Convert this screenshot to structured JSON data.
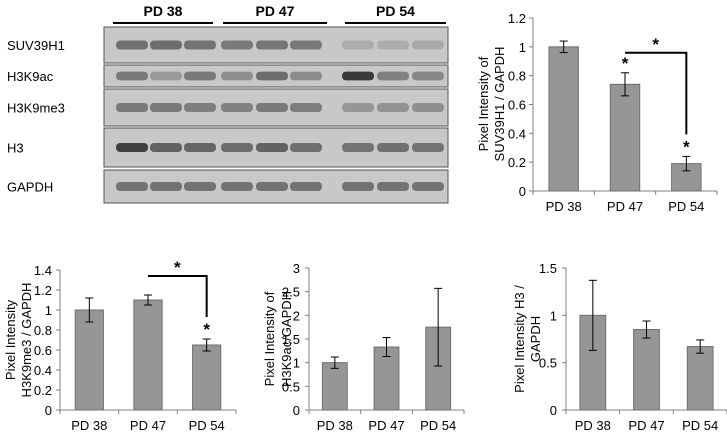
{
  "colors": {
    "bar_fill": "#969696",
    "bar_stroke": "#6d6d6d",
    "axis": "#808080",
    "blot_background": "#c8c8c8",
    "band": "#3a3a3a"
  },
  "blot": {
    "group_labels": [
      "PD 38",
      "PD 47",
      "PD 54"
    ],
    "rows": [
      {
        "label": "SUV39H1",
        "intensities": [
          0.62,
          0.64,
          0.6,
          0.55,
          0.58,
          0.56,
          0.18,
          0.2,
          0.22
        ]
      },
      {
        "label": "H3K9ac",
        "intensities": [
          0.55,
          0.32,
          0.55,
          0.4,
          0.65,
          0.42,
          1.0,
          0.5,
          0.45
        ]
      },
      {
        "label": "H3K9me3",
        "intensities": [
          0.55,
          0.55,
          0.52,
          0.5,
          0.55,
          0.52,
          0.35,
          0.38,
          0.4
        ]
      },
      {
        "label": "H3",
        "intensities": [
          0.95,
          0.72,
          0.7,
          0.65,
          0.72,
          0.62,
          0.6,
          0.62,
          0.6
        ]
      },
      {
        "label": "GAPDH",
        "intensities": [
          0.6,
          0.6,
          0.6,
          0.6,
          0.6,
          0.6,
          0.6,
          0.6,
          0.6
        ]
      }
    ]
  },
  "chart_data": [
    {
      "type": "bar",
      "categories": [
        "PD 38",
        "PD 47",
        "PD 54"
      ],
      "values": [
        1.0,
        0.74,
        0.19
      ],
      "errors": [
        0.04,
        0.08,
        0.05
      ],
      "ylabel_lines": [
        "Pixel Intensity of",
        "SUV39H1 / GAPDH"
      ],
      "ylim": [
        0,
        1.2
      ],
      "yticks": [
        0,
        0.2,
        0.4,
        0.6,
        0.8,
        1,
        1.2
      ],
      "ytick_labels": [
        "0",
        "0.2",
        "0.4",
        "0.6",
        "0.8",
        "1",
        "1.2"
      ],
      "significance_markers": [
        {
          "category": "PD 47",
          "label": "*"
        },
        {
          "category": "PD 54",
          "label": "*"
        }
      ],
      "comparison_brackets": [
        {
          "from": "PD 47",
          "to": "PD 54",
          "label": "*"
        }
      ]
    },
    {
      "type": "bar",
      "categories": [
        "PD 38",
        "PD 47",
        "PD 54"
      ],
      "values": [
        1.0,
        1.1,
        0.65
      ],
      "errors": [
        0.12,
        0.05,
        0.06
      ],
      "ylabel_lines": [
        "Pixel Intensity",
        "H3K9me3 / GAPDH"
      ],
      "ylim": [
        0,
        1.4
      ],
      "yticks": [
        0,
        0.2,
        0.4,
        0.6,
        0.8,
        1,
        1.2,
        1.4
      ],
      "ytick_labels": [
        "0",
        "0.2",
        "0.4",
        "0.6",
        "0.8",
        "1",
        "1.2",
        "1.4"
      ],
      "significance_markers": [
        {
          "category": "PD 54",
          "label": "*"
        }
      ],
      "comparison_brackets": [
        {
          "from": "PD 47",
          "to": "PD 54",
          "label": "*"
        }
      ]
    },
    {
      "type": "bar",
      "categories": [
        "PD 38",
        "PD 47",
        "PD 54"
      ],
      "values": [
        1.0,
        1.33,
        1.75
      ],
      "errors": [
        0.12,
        0.2,
        0.82
      ],
      "ylabel_lines": [
        "Pixel Intensity of",
        "H3K9ac/GAPDH"
      ],
      "ylim": [
        0,
        3
      ],
      "yticks": [
        0,
        0.5,
        1,
        1.5,
        2,
        2.5,
        3
      ],
      "ytick_labels": [
        "0",
        "0.5",
        "1",
        "1.5",
        "2",
        "2.5",
        "3"
      ],
      "significance_markers": [],
      "comparison_brackets": []
    },
    {
      "type": "bar",
      "categories": [
        "PD 38",
        "PD 47",
        "PD 54"
      ],
      "values": [
        1.0,
        0.85,
        0.67
      ],
      "errors": [
        0.37,
        0.09,
        0.07
      ],
      "ylabel_lines": [
        "Pixel Intensity H3 /",
        "GAPDH"
      ],
      "ylim": [
        0,
        1.5
      ],
      "yticks": [
        0,
        0.5,
        1,
        1.5
      ],
      "ytick_labels": [
        "0",
        "0.5",
        "1",
        "1.5"
      ],
      "significance_markers": [],
      "comparison_brackets": []
    }
  ]
}
